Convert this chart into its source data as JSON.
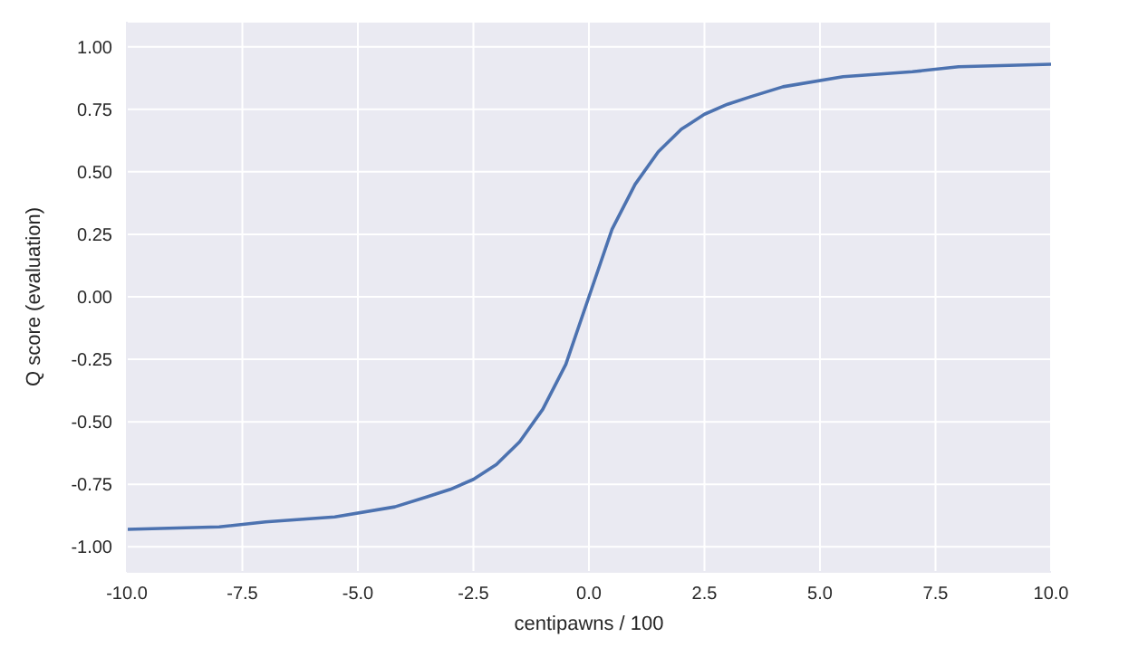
{
  "chart_data": {
    "type": "line",
    "xlabel": "centipawns / 100",
    "ylabel": "Q score (evaluation)",
    "x": [
      -10,
      -8,
      -7,
      -5.5,
      -4.2,
      -3.5,
      -3,
      -2.5,
      -2,
      -1.5,
      -1,
      -0.5,
      0,
      0.5,
      1,
      1.5,
      2,
      2.5,
      3,
      3.5,
      4.2,
      5.5,
      7,
      8,
      10
    ],
    "series": [
      {
        "color": "#4c72b0",
        "values": [
          -0.93,
          -0.92,
          -0.9,
          -0.88,
          -0.84,
          -0.8,
          -0.77,
          -0.73,
          -0.67,
          -0.58,
          -0.45,
          -0.27,
          0,
          0.27,
          0.45,
          0.58,
          0.67,
          0.73,
          0.77,
          0.8,
          0.84,
          0.88,
          0.9,
          0.92,
          0.93
        ]
      }
    ],
    "xlim": [
      -10,
      10
    ],
    "xticks": [
      {
        "value": -10,
        "label": "-10.0"
      },
      -7.5,
      {
        "value": -5,
        "label": "-5.0"
      },
      -2.5,
      {
        "value": 0,
        "label": "0.0"
      },
      2.5,
      {
        "value": 5,
        "label": "5.0"
      },
      7.5,
      {
        "value": 10,
        "label": "10.0"
      }
    ],
    "ylim": [
      -1.1,
      1.1
    ],
    "yticks": [
      {
        "value": -1,
        "label": "-1.00"
      },
      -0.75,
      {
        "value": -0.5,
        "label": "-0.50"
      },
      -0.25,
      {
        "value": 0,
        "label": "0.00"
      },
      0.25,
      {
        "value": 0.5,
        "label": "0.50"
      },
      0.75,
      {
        "value": 1,
        "label": "1.00"
      }
    ],
    "grid": true,
    "marker": "none",
    "line_style": "solid"
  }
}
